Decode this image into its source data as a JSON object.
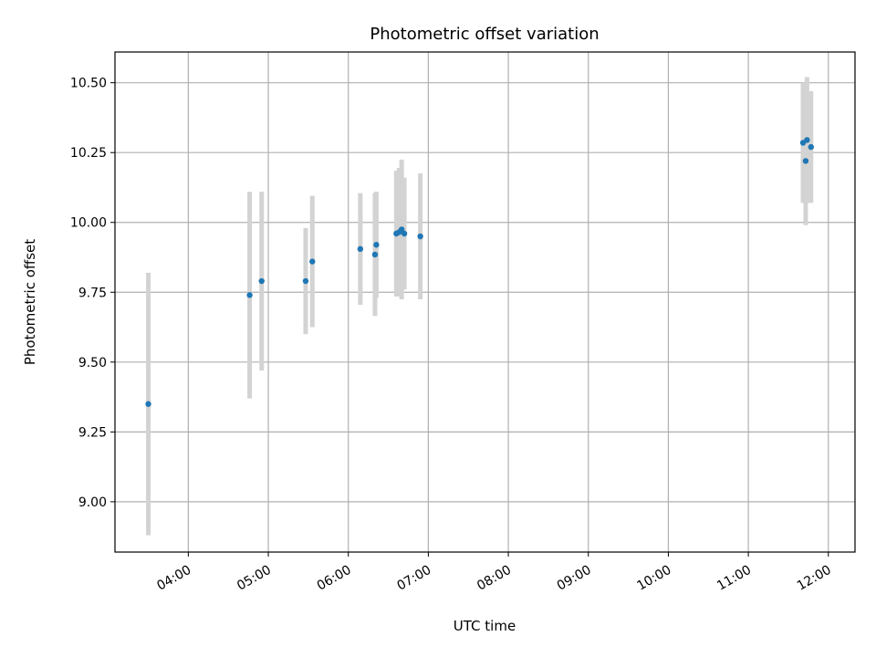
{
  "chart_data": {
    "type": "scatter",
    "title": "Photometric offset variation",
    "xlabel": "UTC time",
    "ylabel": "Photometric offset",
    "grid": true,
    "x_tick_labels": [
      "04:00",
      "05:00",
      "06:00",
      "07:00",
      "08:00",
      "09:00",
      "10:00",
      "11:00",
      "12:00"
    ],
    "y_tick_labels": [
      "9.00",
      "9.25",
      "9.50",
      "9.75",
      "10.00",
      "10.25",
      "10.50"
    ],
    "xlim": [
      "03:05",
      "12:20"
    ],
    "ylim": [
      8.82,
      10.61
    ],
    "colors": {
      "point": "#1f77b4",
      "errorbar": "#d3d3d3"
    },
    "points": [
      {
        "x": "03:30",
        "y": 9.35,
        "err": 0.47
      },
      {
        "x": "04:46",
        "y": 9.74,
        "err": 0.37
      },
      {
        "x": "04:55",
        "y": 9.79,
        "err": 0.32
      },
      {
        "x": "05:28",
        "y": 9.79,
        "err": 0.19
      },
      {
        "x": "05:33",
        "y": 9.86,
        "err": 0.235
      },
      {
        "x": "06:09",
        "y": 9.905,
        "err": 0.2
      },
      {
        "x": "06:20",
        "y": 9.885,
        "err": 0.22
      },
      {
        "x": "06:21",
        "y": 9.92,
        "err": 0.19
      },
      {
        "x": "06:36",
        "y": 9.96,
        "err": 0.225
      },
      {
        "x": "06:38",
        "y": 9.965,
        "err": 0.23
      },
      {
        "x": "06:40",
        "y": 9.975,
        "err": 0.25
      },
      {
        "x": "06:42",
        "y": 9.96,
        "err": 0.2
      },
      {
        "x": "06:54",
        "y": 9.95,
        "err": 0.225
      },
      {
        "x": "11:41",
        "y": 10.285,
        "err": 0.215
      },
      {
        "x": "11:43",
        "y": 10.22,
        "err": 0.23
      },
      {
        "x": "11:44",
        "y": 10.295,
        "err": 0.225
      },
      {
        "x": "11:47",
        "y": 10.27,
        "err": 0.2
      }
    ]
  }
}
